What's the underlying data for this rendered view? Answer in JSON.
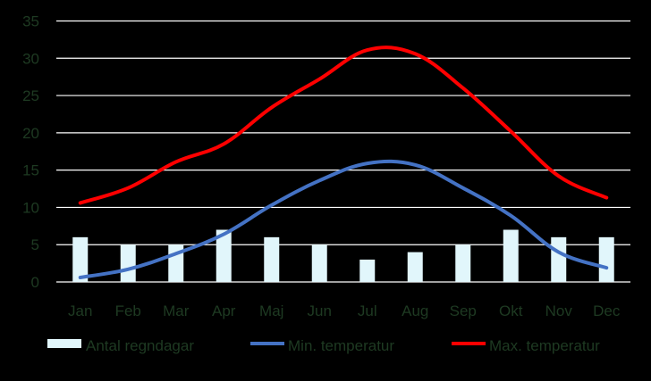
{
  "chart_data": {
    "type": "bar+line",
    "categories": [
      "Jan",
      "Feb",
      "Mar",
      "Apr",
      "Maj",
      "Jun",
      "Jul",
      "Aug",
      "Sep",
      "Okt",
      "Nov",
      "Dec"
    ],
    "ylim": [
      0,
      35
    ],
    "yticks": [
      0,
      5,
      10,
      15,
      20,
      25,
      30,
      35
    ],
    "grid": true,
    "legend_position": "bottom",
    "series": [
      {
        "name": "Antal regndagar",
        "type": "bar",
        "color": "#e1f6fb",
        "values": [
          6,
          5,
          5,
          7,
          6,
          5,
          3,
          4,
          5,
          7,
          6,
          6
        ]
      },
      {
        "name": "Min. temperatur",
        "type": "line",
        "color": "#4472c4",
        "values": [
          0.6,
          1.7,
          3.8,
          6.4,
          10.3,
          13.6,
          15.9,
          15.7,
          12.6,
          8.9,
          4.0,
          1.9
        ]
      },
      {
        "name": "Max. temperatur",
        "type": "line",
        "color": "#ff0000",
        "values": [
          10.6,
          12.6,
          16.1,
          18.5,
          23.4,
          27.2,
          31.1,
          30.6,
          26.0,
          20.2,
          14.2,
          11.3
        ]
      }
    ]
  },
  "colors": {
    "background": "#000000",
    "gridline": "#ffffff",
    "tick_text": "#1e3a22"
  }
}
